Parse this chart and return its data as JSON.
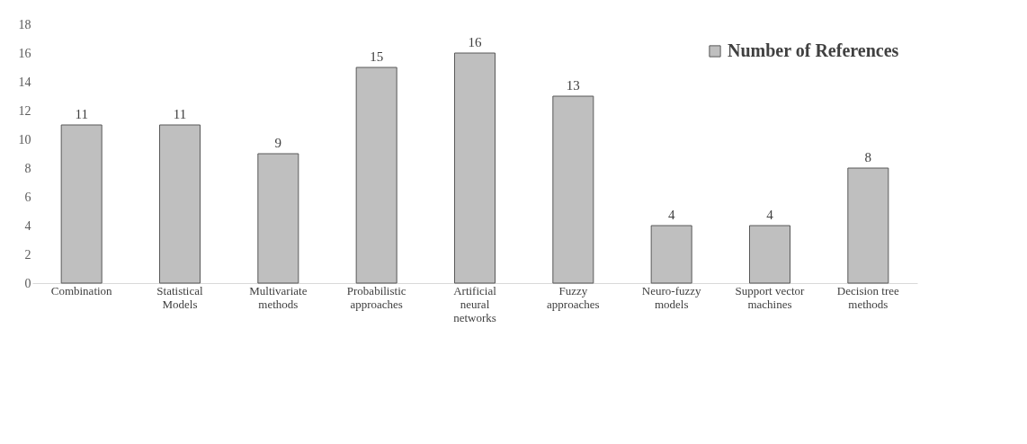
{
  "chart_data": {
    "type": "bar",
    "categories": [
      "Combination",
      "Statistical Models",
      "Multivariate methods",
      "Probabilistic approaches",
      "Artificial neural networks",
      "Fuzzy approaches",
      "Neuro-fuzzy models",
      "Support vector machines",
      "Decision tree methods"
    ],
    "series": [
      {
        "name": "Number of References",
        "color": "#bfbfbf",
        "values": [
          11,
          11,
          9,
          15,
          16,
          13,
          4,
          4,
          8
        ]
      }
    ],
    "ylim": [
      0,
      18
    ],
    "yticks": [
      0,
      2,
      4,
      6,
      8,
      10,
      12,
      14,
      16,
      18
    ],
    "data_labels": true,
    "grid": false,
    "legend": "top right"
  }
}
